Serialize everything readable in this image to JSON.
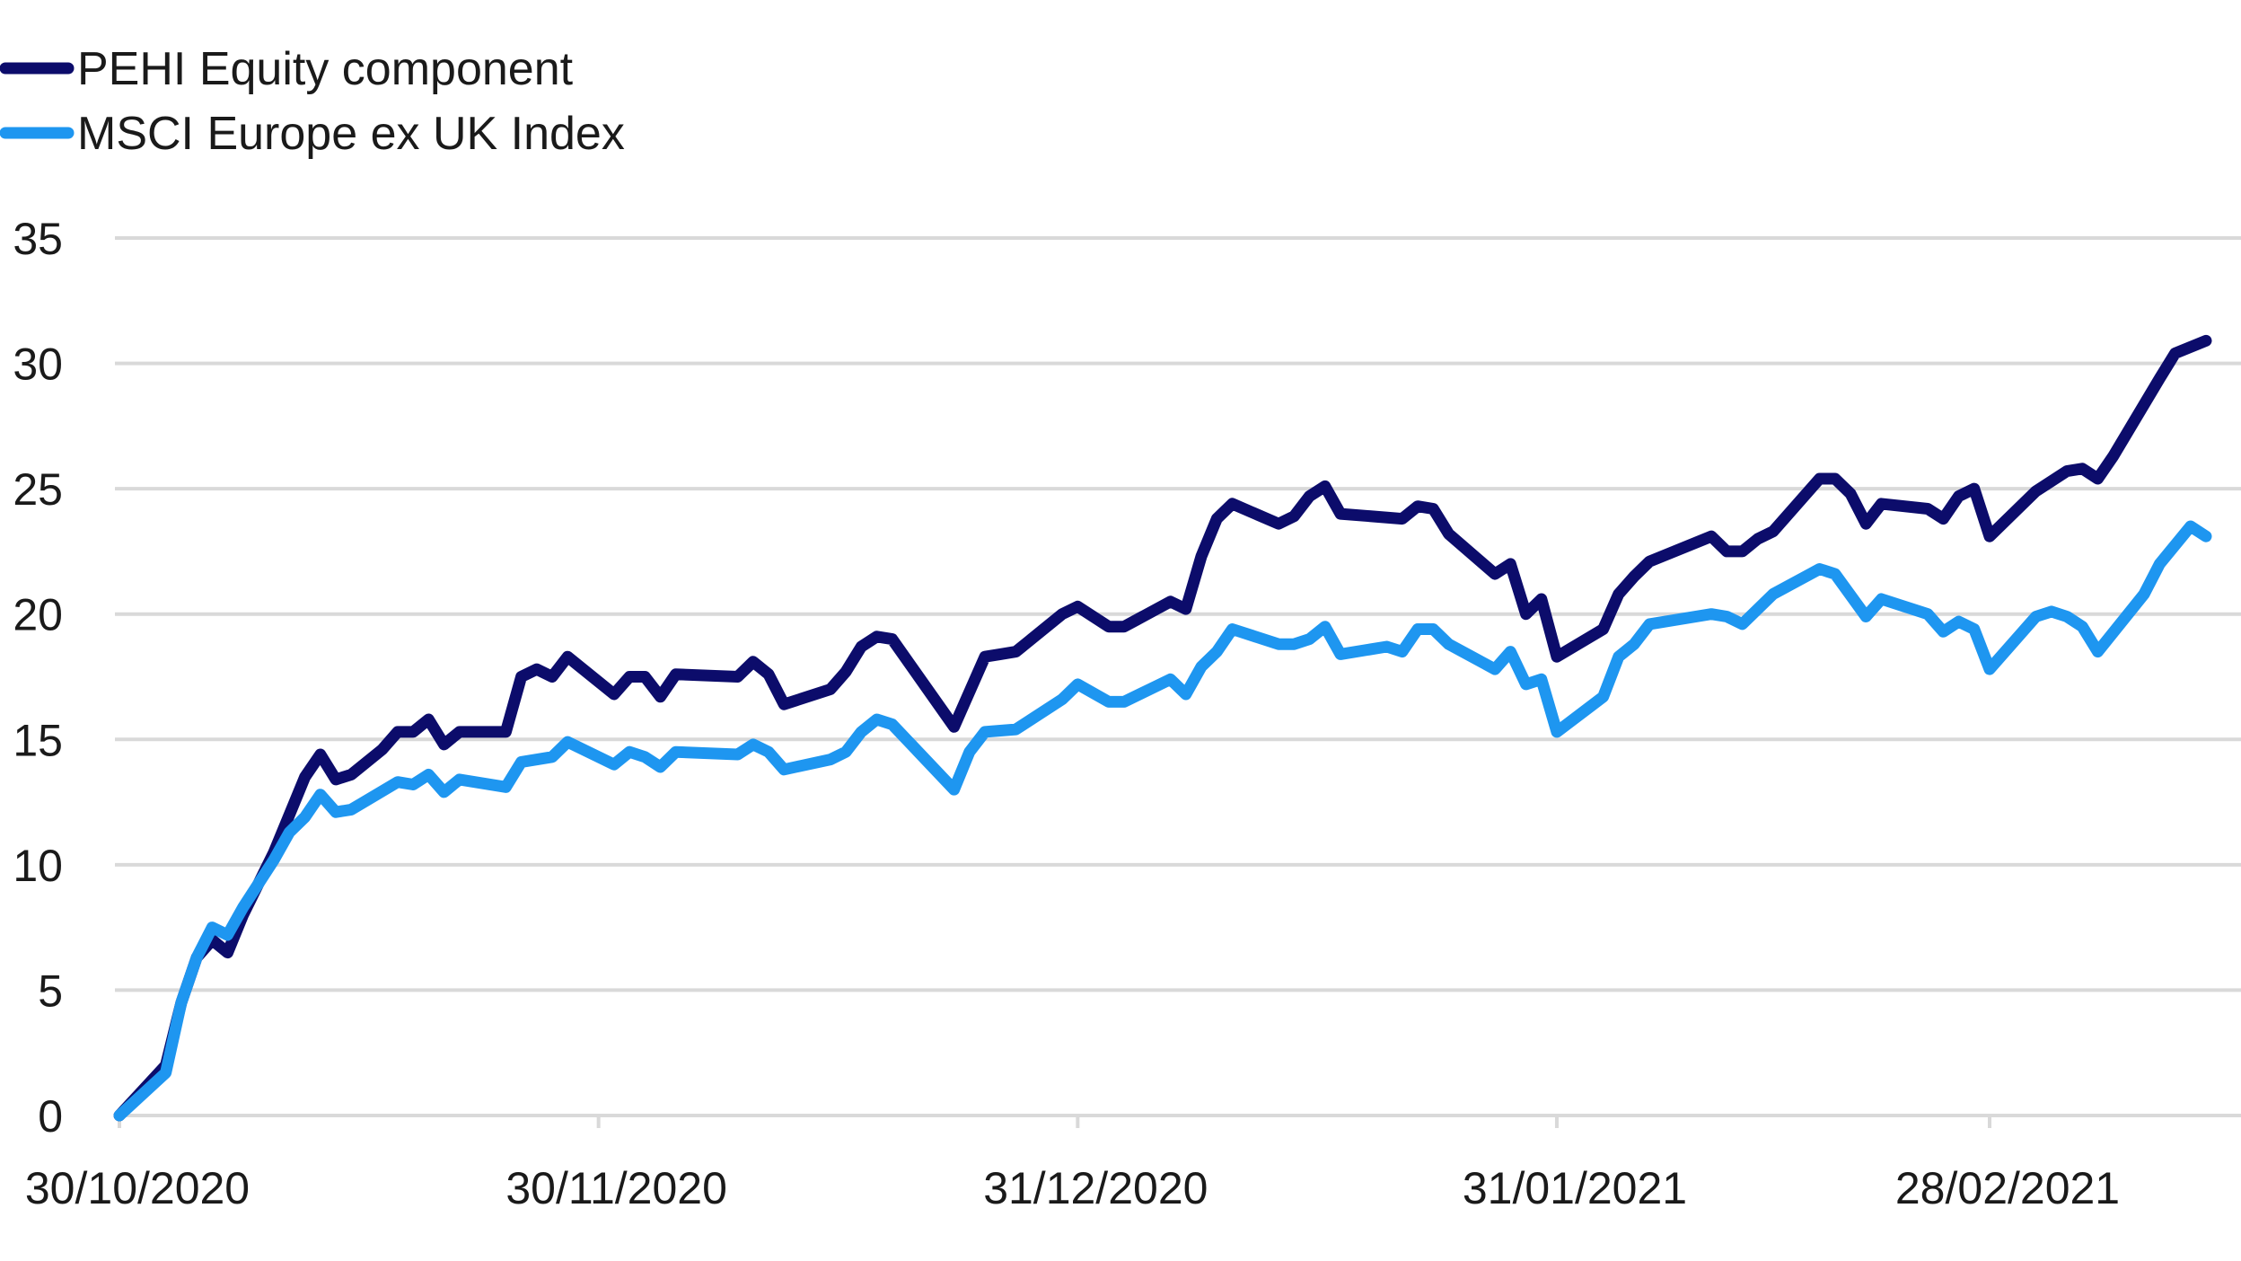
{
  "chart_data": {
    "type": "line",
    "title": "",
    "xlabel": "",
    "ylabel": "",
    "ylim": [
      0,
      35
    ],
    "y_ticks": [
      0,
      5,
      10,
      15,
      20,
      25,
      30,
      35
    ],
    "x_tick_labels": [
      "30/10/2020",
      "30/11/2020",
      "31/12/2020",
      "31/01/2021",
      "28/02/2021"
    ],
    "x_tick_dates": [
      "2020-10-30",
      "2020-11-30",
      "2020-12-31",
      "2021-01-31",
      "2021-02-28"
    ],
    "grid": "horizontal",
    "legend_position": "top-left",
    "series": [
      {
        "name": "PEHI Equity component",
        "color": "#0c0c6b",
        "points": [
          [
            "2020-10-30",
            0.0
          ],
          [
            "2020-11-02",
            2.0
          ],
          [
            "2020-11-03",
            4.5
          ],
          [
            "2020-11-04",
            6.3
          ],
          [
            "2020-11-05",
            7.0
          ],
          [
            "2020-11-06",
            6.5
          ],
          [
            "2020-11-07",
            8.0
          ],
          [
            "2020-11-09",
            10.5
          ],
          [
            "2020-11-10",
            12.0
          ],
          [
            "2020-11-11",
            13.5
          ],
          [
            "2020-11-12",
            14.4
          ],
          [
            "2020-11-13",
            13.4
          ],
          [
            "2020-11-14",
            13.6
          ],
          [
            "2020-11-16",
            14.6
          ],
          [
            "2020-11-17",
            15.3
          ],
          [
            "2020-11-18",
            15.3
          ],
          [
            "2020-11-19",
            15.8
          ],
          [
            "2020-11-20",
            14.8
          ],
          [
            "2020-11-21",
            15.3
          ],
          [
            "2020-11-24",
            15.3
          ],
          [
            "2020-11-25",
            17.5
          ],
          [
            "2020-11-26",
            17.8
          ],
          [
            "2020-11-27",
            17.5
          ],
          [
            "2020-11-28",
            18.3
          ],
          [
            "2020-12-01",
            16.8
          ],
          [
            "2020-12-02",
            17.5
          ],
          [
            "2020-12-03",
            17.5
          ],
          [
            "2020-12-04",
            16.7
          ],
          [
            "2020-12-05",
            17.6
          ],
          [
            "2020-12-09",
            17.5
          ],
          [
            "2020-12-10",
            18.1
          ],
          [
            "2020-12-11",
            17.6
          ],
          [
            "2020-12-12",
            16.4
          ],
          [
            "2020-12-15",
            17.0
          ],
          [
            "2020-12-16",
            17.7
          ],
          [
            "2020-12-17",
            18.7
          ],
          [
            "2020-12-18",
            19.1
          ],
          [
            "2020-12-19",
            19.0
          ],
          [
            "2020-12-23",
            15.5
          ],
          [
            "2020-12-25",
            18.3
          ],
          [
            "2020-12-26",
            18.4
          ],
          [
            "2020-12-27",
            18.5
          ],
          [
            "2020-12-30",
            20.0
          ],
          [
            "2020-12-31",
            20.3
          ],
          [
            "2021-01-02",
            19.5
          ],
          [
            "2021-01-03",
            19.5
          ],
          [
            "2021-01-06",
            20.5
          ],
          [
            "2021-01-07",
            20.2
          ],
          [
            "2021-01-08",
            22.3
          ],
          [
            "2021-01-09",
            23.8
          ],
          [
            "2021-01-10",
            24.4
          ],
          [
            "2021-01-13",
            23.6
          ],
          [
            "2021-01-14",
            23.9
          ],
          [
            "2021-01-15",
            24.7
          ],
          [
            "2021-01-16",
            25.1
          ],
          [
            "2021-01-17",
            24.0
          ],
          [
            "2021-01-21",
            23.8
          ],
          [
            "2021-01-22",
            24.3
          ],
          [
            "2021-01-23",
            24.2
          ],
          [
            "2021-01-24",
            23.2
          ],
          [
            "2021-01-27",
            21.6
          ],
          [
            "2021-01-28",
            22.0
          ],
          [
            "2021-01-29",
            20.0
          ],
          [
            "2021-01-30",
            20.6
          ],
          [
            "2021-01-31",
            18.3
          ],
          [
            "2021-02-03",
            19.4
          ],
          [
            "2021-02-04",
            20.8
          ],
          [
            "2021-02-05",
            21.5
          ],
          [
            "2021-02-06",
            22.1
          ],
          [
            "2021-02-10",
            23.1
          ],
          [
            "2021-02-11",
            22.5
          ],
          [
            "2021-02-12",
            22.5
          ],
          [
            "2021-02-13",
            23.0
          ],
          [
            "2021-02-14",
            23.3
          ],
          [
            "2021-02-17",
            25.4
          ],
          [
            "2021-02-18",
            25.4
          ],
          [
            "2021-02-19",
            24.8
          ],
          [
            "2021-02-20",
            23.6
          ],
          [
            "2021-02-21",
            24.4
          ],
          [
            "2021-02-24",
            24.2
          ],
          [
            "2021-02-25",
            23.8
          ],
          [
            "2021-02-26",
            24.7
          ],
          [
            "2021-02-27",
            25.0
          ],
          [
            "2021-02-28",
            23.1
          ],
          [
            "2021-03-03",
            24.9
          ],
          [
            "2021-03-05",
            25.7
          ],
          [
            "2021-03-06",
            25.8
          ],
          [
            "2021-03-07",
            25.4
          ],
          [
            "2021-03-08",
            26.3
          ],
          [
            "2021-03-11",
            29.4
          ],
          [
            "2021-03-12",
            30.4
          ],
          [
            "2021-03-14",
            30.9
          ]
        ]
      },
      {
        "name": "MSCI Europe ex UK Index",
        "color": "#1e96f0",
        "points": [
          [
            "2020-10-30",
            0.0
          ],
          [
            "2020-11-02",
            1.7
          ],
          [
            "2020-11-03",
            4.5
          ],
          [
            "2020-11-04",
            6.3
          ],
          [
            "2020-11-05",
            7.5
          ],
          [
            "2020-11-06",
            7.2
          ],
          [
            "2020-11-07",
            8.3
          ],
          [
            "2020-11-09",
            10.2
          ],
          [
            "2020-11-10",
            11.3
          ],
          [
            "2020-11-11",
            11.9
          ],
          [
            "2020-11-12",
            12.8
          ],
          [
            "2020-11-13",
            12.1
          ],
          [
            "2020-11-14",
            12.2
          ],
          [
            "2020-11-17",
            13.3
          ],
          [
            "2020-11-18",
            13.2
          ],
          [
            "2020-11-19",
            13.6
          ],
          [
            "2020-11-20",
            12.9
          ],
          [
            "2020-11-21",
            13.4
          ],
          [
            "2020-11-24",
            13.1
          ],
          [
            "2020-11-25",
            14.1
          ],
          [
            "2020-11-27",
            14.3
          ],
          [
            "2020-11-28",
            14.9
          ],
          [
            "2020-12-01",
            14.0
          ],
          [
            "2020-12-02",
            14.5
          ],
          [
            "2020-12-03",
            14.3
          ],
          [
            "2020-12-04",
            13.9
          ],
          [
            "2020-12-05",
            14.5
          ],
          [
            "2020-12-09",
            14.4
          ],
          [
            "2020-12-10",
            14.8
          ],
          [
            "2020-12-11",
            14.5
          ],
          [
            "2020-12-12",
            13.8
          ],
          [
            "2020-12-15",
            14.2
          ],
          [
            "2020-12-16",
            14.5
          ],
          [
            "2020-12-17",
            15.3
          ],
          [
            "2020-12-18",
            15.8
          ],
          [
            "2020-12-19",
            15.6
          ],
          [
            "2020-12-23",
            13.0
          ],
          [
            "2020-12-24",
            14.5
          ],
          [
            "2020-12-25",
            15.3
          ],
          [
            "2020-12-27",
            15.4
          ],
          [
            "2020-12-30",
            16.6
          ],
          [
            "2020-12-31",
            17.2
          ],
          [
            "2021-01-02",
            16.5
          ],
          [
            "2021-01-03",
            16.5
          ],
          [
            "2021-01-06",
            17.4
          ],
          [
            "2021-01-07",
            16.8
          ],
          [
            "2021-01-08",
            17.9
          ],
          [
            "2021-01-09",
            18.5
          ],
          [
            "2021-01-10",
            19.4
          ],
          [
            "2021-01-13",
            18.8
          ],
          [
            "2021-01-14",
            18.8
          ],
          [
            "2021-01-15",
            19.0
          ],
          [
            "2021-01-16",
            19.5
          ],
          [
            "2021-01-17",
            18.4
          ],
          [
            "2021-01-20",
            18.7
          ],
          [
            "2021-01-21",
            18.5
          ],
          [
            "2021-01-22",
            19.4
          ],
          [
            "2021-01-23",
            19.4
          ],
          [
            "2021-01-24",
            18.8
          ],
          [
            "2021-01-27",
            17.8
          ],
          [
            "2021-01-28",
            18.5
          ],
          [
            "2021-01-29",
            17.2
          ],
          [
            "2021-01-30",
            17.4
          ],
          [
            "2021-01-31",
            15.3
          ],
          [
            "2021-02-03",
            16.7
          ],
          [
            "2021-02-04",
            18.3
          ],
          [
            "2021-02-05",
            18.8
          ],
          [
            "2021-02-06",
            19.6
          ],
          [
            "2021-02-10",
            20.0
          ],
          [
            "2021-02-11",
            19.9
          ],
          [
            "2021-02-12",
            19.6
          ],
          [
            "2021-02-14",
            20.8
          ],
          [
            "2021-02-17",
            21.8
          ],
          [
            "2021-02-18",
            21.6
          ],
          [
            "2021-02-20",
            19.9
          ],
          [
            "2021-02-21",
            20.6
          ],
          [
            "2021-02-24",
            20.0
          ],
          [
            "2021-02-25",
            19.3
          ],
          [
            "2021-02-26",
            19.7
          ],
          [
            "2021-02-27",
            19.4
          ],
          [
            "2021-02-28",
            17.8
          ],
          [
            "2021-03-03",
            19.9
          ],
          [
            "2021-03-04",
            20.1
          ],
          [
            "2021-03-05",
            19.9
          ],
          [
            "2021-03-06",
            19.5
          ],
          [
            "2021-03-07",
            18.5
          ],
          [
            "2021-03-10",
            20.8
          ],
          [
            "2021-03-11",
            22.0
          ],
          [
            "2021-03-13",
            23.5
          ],
          [
            "2021-03-14",
            23.1
          ]
        ]
      }
    ]
  }
}
